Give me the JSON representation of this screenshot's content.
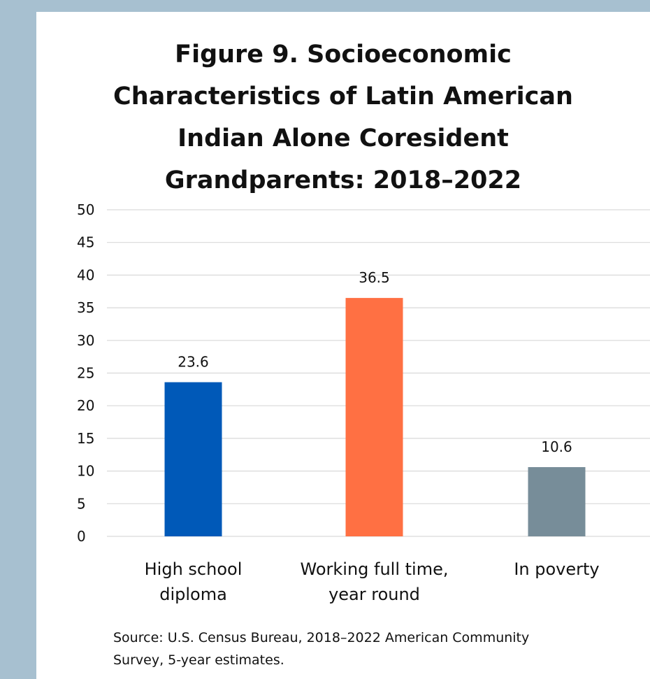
{
  "chart_data": {
    "type": "bar",
    "title_lines": [
      "Figure 9. Socioeconomic",
      "Characteristics of Latin American",
      "Indian Alone Coresident",
      "Grandparents: 2018–2022"
    ],
    "categories": [
      [
        "High school",
        "diploma"
      ],
      [
        "Working full time,",
        "year round"
      ],
      [
        "In poverty"
      ]
    ],
    "values": [
      23.6,
      36.5,
      10.6
    ],
    "data_labels": [
      "23.6",
      "36.5",
      "10.6"
    ],
    "colors": [
      "#0059b8",
      "#ff7043",
      "#778d99"
    ],
    "ylim": [
      0,
      50
    ],
    "yticks": [
      0,
      5,
      10,
      15,
      20,
      25,
      30,
      35,
      40,
      45,
      50
    ],
    "grid": true,
    "xlabel": "",
    "ylabel": ""
  },
  "source_lines": [
    "Source: U.S. Census Bureau, 2018–2022 American Community",
    "Survey, 5-year estimates."
  ]
}
